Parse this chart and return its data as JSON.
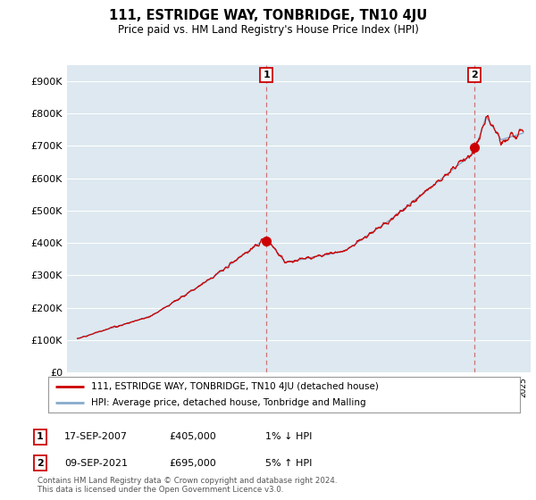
{
  "title": "111, ESTRIDGE WAY, TONBRIDGE, TN10 4JU",
  "subtitle": "Price paid vs. HM Land Registry's House Price Index (HPI)",
  "ylim": [
    0,
    950000
  ],
  "yticks": [
    0,
    100000,
    200000,
    300000,
    400000,
    500000,
    600000,
    700000,
    800000,
    900000
  ],
  "ytick_labels": [
    "£0",
    "£100K",
    "£200K",
    "£300K",
    "£400K",
    "£500K",
    "£600K",
    "£700K",
    "£800K",
    "£900K"
  ],
  "sale1": {
    "date_num": 2007.71,
    "price": 405000,
    "label": "1",
    "date_str": "17-SEP-2007",
    "vs": "1% ↓ HPI"
  },
  "sale2": {
    "date_num": 2021.69,
    "price": 695000,
    "label": "2",
    "date_str": "09-SEP-2021",
    "vs": "5% ↑ HPI"
  },
  "legend_line1": "111, ESTRIDGE WAY, TONBRIDGE, TN10 4JU (detached house)",
  "legend_line2": "HPI: Average price, detached house, Tonbridge and Malling",
  "footnote": "Contains HM Land Registry data © Crown copyright and database right 2024.\nThis data is licensed under the Open Government Licence v3.0.",
  "sale_line_color": "#cc0000",
  "hpi_line_color": "#88aacc",
  "chart_bg_color": "#dde8f0",
  "background_color": "#ffffff",
  "grid_color": "#ffffff",
  "marker_color": "#cc0000",
  "dashed_line_color": "#cc6666"
}
